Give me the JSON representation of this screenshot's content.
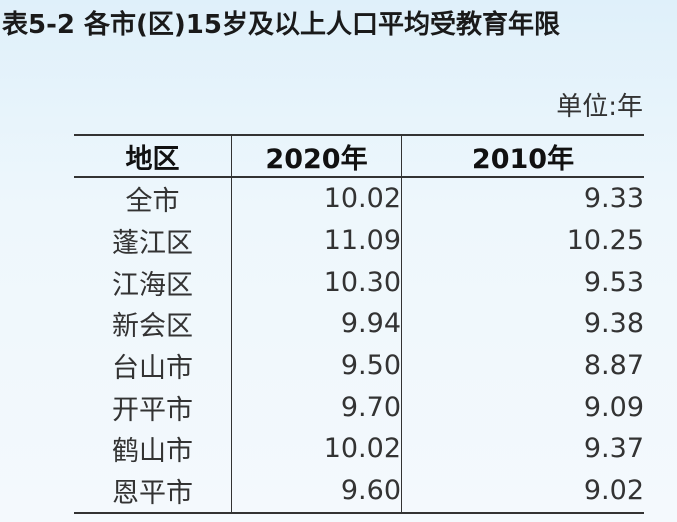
{
  "title": "表5-2  各市(区)15岁及以上人口平均受教育年限",
  "unit": "单位:年",
  "table": {
    "headers": [
      "地区",
      "2020年",
      "2010年"
    ],
    "rows": [
      [
        "全市",
        "10.02",
        "9.33"
      ],
      [
        "蓬江区",
        "11.09",
        "10.25"
      ],
      [
        "江海区",
        "10.30",
        "9.53"
      ],
      [
        "新会区",
        "9.94",
        "9.38"
      ],
      [
        "台山市",
        "9.50",
        "8.87"
      ],
      [
        "开平市",
        "9.70",
        "9.09"
      ],
      [
        "鹤山市",
        "10.02",
        "9.37"
      ],
      [
        "恩平市",
        "9.60",
        "9.02"
      ]
    ]
  }
}
